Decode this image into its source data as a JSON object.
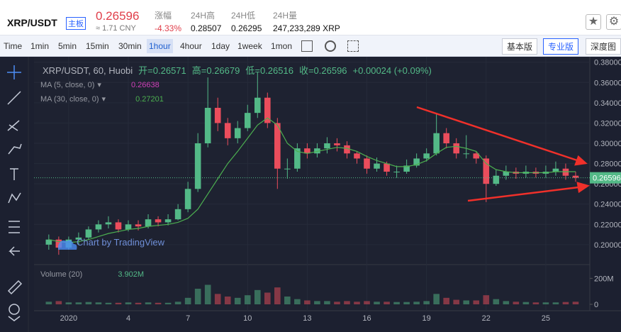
{
  "header": {
    "symbol": "XRP/USDT",
    "badge": "主板",
    "price": "0.26596",
    "cny": "≈ 1.71 CNY",
    "stats": [
      {
        "label": "涨幅",
        "value": "-4.33%"
      },
      {
        "label": "24H高",
        "value": "0.28507"
      },
      {
        "label": "24H低",
        "value": "0.26295"
      },
      {
        "label": "24H量",
        "value": "247,233,289 XRP"
      }
    ]
  },
  "toolbar": {
    "intervals": [
      "Time",
      "1min",
      "5min",
      "15min",
      "30min",
      "1hour",
      "4hour",
      "1day",
      "1week",
      "1mon"
    ],
    "active_interval": 5,
    "views": [
      "基本版",
      "专业版",
      "深度图"
    ],
    "active_view": 1
  },
  "chart_data": {
    "type": "candlestick",
    "title": "XRP/USDT, 60, Huobi",
    "ohlc_legend": [
      "开=0.26571",
      "高=0.26679",
      "低=0.26516",
      "收=0.26596",
      "+0.00024 (+0.09%)"
    ],
    "indicators": [
      {
        "name": "MA (5, close, 0)",
        "value": "0.26638",
        "color": "#d040b8"
      },
      {
        "name": "MA (30, close, 0)",
        "value": "0.27201",
        "color": "#4caf50",
        "values": [
          0.205,
          0.203,
          0.202,
          0.203,
          0.205,
          0.208,
          0.211,
          0.213,
          0.215,
          0.216,
          0.218,
          0.219,
          0.22,
          0.222,
          0.226,
          0.235,
          0.25,
          0.265,
          0.28,
          0.292,
          0.305,
          0.318,
          0.325,
          0.318,
          0.3,
          0.292,
          0.29,
          0.292,
          0.294,
          0.296,
          0.295,
          0.292,
          0.287,
          0.283,
          0.28,
          0.277,
          0.277,
          0.279,
          0.283,
          0.29,
          0.296,
          0.297,
          0.295,
          0.292,
          0.28,
          0.274,
          0.272,
          0.271,
          0.271,
          0.271,
          0.271,
          0.272,
          0.272,
          0.272
        ]
      }
    ],
    "watermark": "Chart by TradingView",
    "up_color": "#53b987",
    "down_color": "#eb4d5c",
    "x": [
      0,
      0.5,
      1,
      1.5,
      2,
      2.5,
      3,
      3.5,
      4,
      4.5,
      5,
      5.5,
      6,
      6.5,
      7,
      7.5,
      8,
      8.5,
      9,
      9.5,
      10,
      10.5,
      11,
      11.5,
      12,
      12.5,
      13,
      13.5,
      14,
      14.5,
      15,
      15.5,
      16,
      16.5,
      17,
      17.5,
      18,
      18.5,
      19,
      19.5,
      20,
      20.5,
      21,
      21.5,
      22,
      22.5,
      23,
      23.5,
      24,
      24.5,
      25,
      25.5,
      26,
      26.5
    ],
    "open": [
      0.2,
      0.205,
      0.197,
      0.205,
      0.207,
      0.215,
      0.22,
      0.222,
      0.215,
      0.22,
      0.218,
      0.225,
      0.222,
      0.225,
      0.235,
      0.255,
      0.3,
      0.335,
      0.32,
      0.305,
      0.315,
      0.33,
      0.345,
      0.32,
      0.275,
      0.275,
      0.295,
      0.29,
      0.295,
      0.3,
      0.298,
      0.29,
      0.285,
      0.275,
      0.28,
      0.272,
      0.272,
      0.278,
      0.285,
      0.29,
      0.31,
      0.3,
      0.29,
      0.29,
      0.285,
      0.26,
      0.268,
      0.272,
      0.27,
      0.272,
      0.27,
      0.272,
      0.275,
      0.268
    ],
    "high": [
      0.21,
      0.208,
      0.208,
      0.212,
      0.218,
      0.224,
      0.228,
      0.225,
      0.224,
      0.224,
      0.23,
      0.228,
      0.23,
      0.24,
      0.262,
      0.31,
      0.365,
      0.345,
      0.325,
      0.322,
      0.338,
      0.37,
      0.35,
      0.325,
      0.285,
      0.3,
      0.3,
      0.3,
      0.306,
      0.305,
      0.302,
      0.292,
      0.288,
      0.286,
      0.282,
      0.278,
      0.284,
      0.29,
      0.295,
      0.33,
      0.315,
      0.305,
      0.308,
      0.292,
      0.288,
      0.274,
      0.278,
      0.276,
      0.278,
      0.276,
      0.278,
      0.282,
      0.28,
      0.272
    ],
    "low": [
      0.195,
      0.19,
      0.195,
      0.2,
      0.205,
      0.212,
      0.216,
      0.212,
      0.213,
      0.214,
      0.216,
      0.218,
      0.219,
      0.224,
      0.232,
      0.252,
      0.296,
      0.312,
      0.298,
      0.3,
      0.312,
      0.325,
      0.315,
      0.255,
      0.265,
      0.272,
      0.285,
      0.286,
      0.29,
      0.292,
      0.285,
      0.28,
      0.27,
      0.272,
      0.268,
      0.266,
      0.27,
      0.276,
      0.282,
      0.288,
      0.295,
      0.285,
      0.285,
      0.28,
      0.242,
      0.258,
      0.264,
      0.265,
      0.266,
      0.266,
      0.266,
      0.268,
      0.264,
      0.262
    ],
    "close": [
      0.205,
      0.197,
      0.205,
      0.207,
      0.215,
      0.22,
      0.222,
      0.215,
      0.22,
      0.218,
      0.225,
      0.222,
      0.225,
      0.235,
      0.255,
      0.3,
      0.335,
      0.32,
      0.305,
      0.315,
      0.33,
      0.345,
      0.32,
      0.275,
      0.275,
      0.295,
      0.29,
      0.295,
      0.3,
      0.298,
      0.29,
      0.285,
      0.275,
      0.28,
      0.272,
      0.272,
      0.278,
      0.285,
      0.29,
      0.31,
      0.3,
      0.29,
      0.29,
      0.285,
      0.26,
      0.268,
      0.272,
      0.27,
      0.272,
      0.27,
      0.272,
      0.275,
      0.268,
      0.266
    ],
    "last_price": 0.26596,
    "xlim": [
      -0.6,
      27
    ],
    "xticks": [
      {
        "value": 1,
        "label": "2020"
      },
      4,
      7,
      10,
      13,
      16,
      19,
      22,
      25
    ],
    "ylim": [
      0.181,
      0.384
    ],
    "yticks": [
      {
        "value": 0.2,
        "label": "0.20000"
      },
      {
        "value": 0.22,
        "label": "0.22000"
      },
      {
        "value": 0.24,
        "label": "0.24000"
      },
      {
        "value": 0.26,
        "label": "0.26000"
      },
      {
        "value": 0.28,
        "label": "0.28000"
      },
      {
        "value": 0.3,
        "label": "0.30000"
      },
      {
        "value": 0.32,
        "label": "0.32000"
      },
      {
        "value": 0.34,
        "label": "0.34000"
      },
      {
        "value": 0.36,
        "label": "0.36000"
      },
      {
        "value": 0.38,
        "label": "0.38000"
      }
    ],
    "grid": true,
    "volume": {
      "name": "Volume (20)",
      "value": "3.902M",
      "values": [
        20,
        25,
        15,
        15,
        18,
        15,
        12,
        12,
        15,
        12,
        15,
        12,
        12,
        20,
        50,
        120,
        150,
        80,
        60,
        50,
        70,
        110,
        90,
        130,
        60,
        40,
        30,
        25,
        25,
        20,
        25,
        20,
        25,
        20,
        20,
        18,
        18,
        20,
        25,
        80,
        50,
        35,
        30,
        30,
        70,
        40,
        25,
        20,
        18,
        15,
        15,
        15,
        18,
        20
      ],
      "ylim": [
        0,
        240
      ],
      "yticks": [
        {
          "value": 200,
          "label": "200M"
        },
        0
      ]
    }
  }
}
